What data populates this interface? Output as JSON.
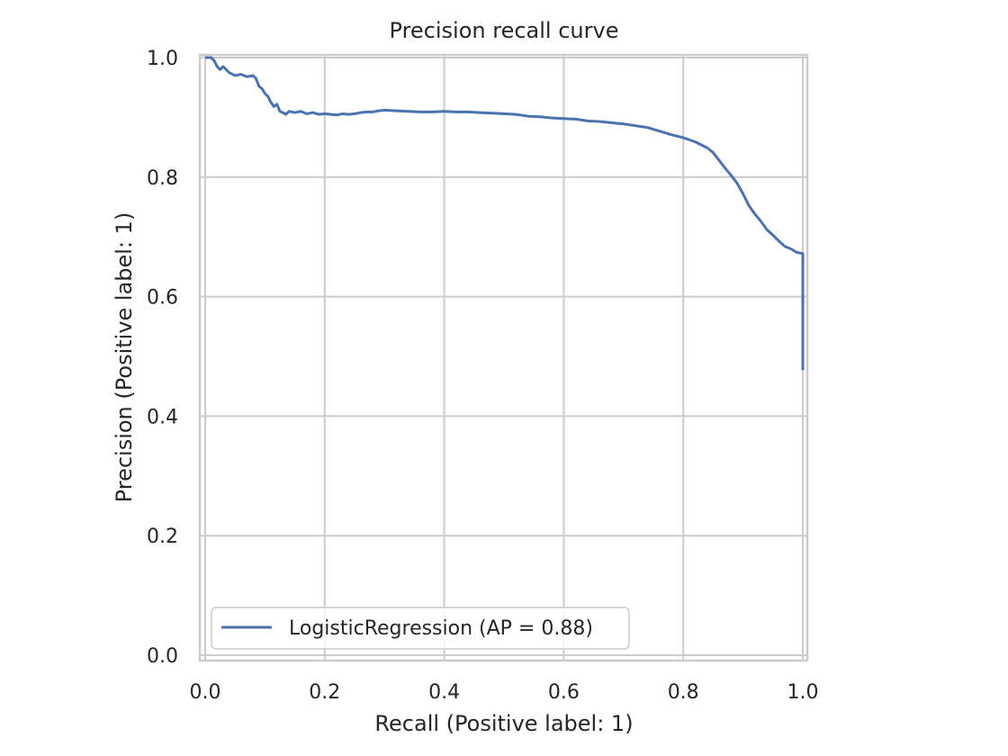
{
  "chart_data": {
    "type": "line",
    "title": "Precision recall curve",
    "xlabel": "Recall (Positive label: 1)",
    "ylabel": "Precision (Positive label: 1)",
    "xlim": [
      0.0,
      1.0
    ],
    "ylim": [
      0.0,
      1.0
    ],
    "xticks": [
      "0.0",
      "0.2",
      "0.4",
      "0.6",
      "0.8",
      "1.0"
    ],
    "yticks": [
      "0.0",
      "0.2",
      "0.4",
      "0.6",
      "0.8",
      "1.0"
    ],
    "grid": true,
    "legend_position": "lower-left",
    "colors": {
      "series": "#4c72b0",
      "grid": "#cccccc",
      "spine": "#cccccc",
      "text": "#262626"
    },
    "series": [
      {
        "name": "LogisticRegression (AP = 0.88)",
        "x": [
          0.0,
          0.005,
          0.01,
          0.015,
          0.02,
          0.025,
          0.03,
          0.04,
          0.05,
          0.06,
          0.07,
          0.08,
          0.085,
          0.09,
          0.095,
          0.1,
          0.105,
          0.11,
          0.115,
          0.12,
          0.125,
          0.13,
          0.135,
          0.14,
          0.15,
          0.16,
          0.17,
          0.18,
          0.19,
          0.2,
          0.21,
          0.22,
          0.23,
          0.24,
          0.25,
          0.26,
          0.27,
          0.28,
          0.29,
          0.3,
          0.32,
          0.34,
          0.36,
          0.38,
          0.4,
          0.42,
          0.44,
          0.46,
          0.48,
          0.5,
          0.52,
          0.54,
          0.56,
          0.58,
          0.6,
          0.62,
          0.64,
          0.66,
          0.68,
          0.7,
          0.72,
          0.74,
          0.76,
          0.78,
          0.8,
          0.82,
          0.84,
          0.85,
          0.86,
          0.87,
          0.88,
          0.89,
          0.9,
          0.91,
          0.92,
          0.93,
          0.94,
          0.95,
          0.96,
          0.97,
          0.98,
          0.99,
          1.0,
          1.0
        ],
        "y": [
          1.0,
          1.0,
          1.0,
          0.995,
          0.985,
          0.98,
          0.985,
          0.975,
          0.97,
          0.972,
          0.968,
          0.97,
          0.965,
          0.952,
          0.948,
          0.94,
          0.935,
          0.925,
          0.918,
          0.922,
          0.91,
          0.908,
          0.905,
          0.91,
          0.908,
          0.91,
          0.906,
          0.908,
          0.905,
          0.906,
          0.905,
          0.904,
          0.906,
          0.905,
          0.906,
          0.908,
          0.909,
          0.909,
          0.911,
          0.912,
          0.911,
          0.91,
          0.909,
          0.909,
          0.91,
          0.909,
          0.909,
          0.908,
          0.907,
          0.906,
          0.905,
          0.902,
          0.901,
          0.899,
          0.898,
          0.897,
          0.894,
          0.893,
          0.891,
          0.889,
          0.886,
          0.883,
          0.877,
          0.871,
          0.866,
          0.859,
          0.849,
          0.841,
          0.828,
          0.815,
          0.803,
          0.79,
          0.772,
          0.752,
          0.738,
          0.726,
          0.712,
          0.703,
          0.693,
          0.684,
          0.68,
          0.674,
          0.672,
          0.477
        ]
      }
    ]
  }
}
